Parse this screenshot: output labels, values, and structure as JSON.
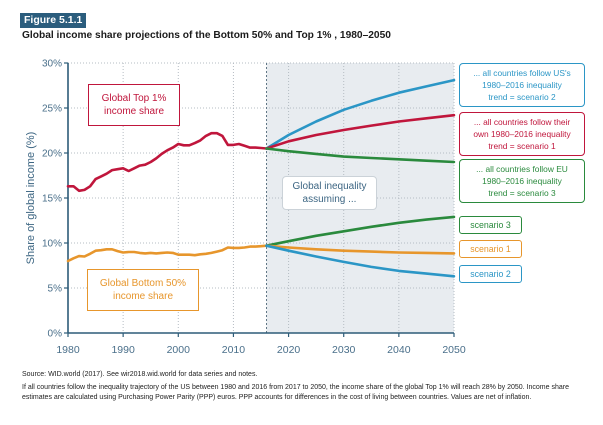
{
  "figure": {
    "label": "Figure 5.1.1",
    "title": "Global income share projections of the Bottom 50% and Top 1% , 1980–2050"
  },
  "chart_data": {
    "type": "line",
    "title": "Global income share projections of the Bottom 50% and Top 1% , 1980–2050",
    "xlabel": "",
    "ylabel": "Share of global income (%)",
    "xlim": [
      1980,
      2050
    ],
    "ylim": [
      0,
      30
    ],
    "x_ticks": [
      1980,
      1990,
      2000,
      2010,
      2020,
      2030,
      2040,
      2050
    ],
    "x_tick_labels": [
      "1980",
      "1990",
      "2000",
      "2010",
      "2020",
      "2030",
      "2040",
      "2050"
    ],
    "y_ticks": [
      0,
      5,
      10,
      15,
      20,
      25,
      30
    ],
    "y_tick_labels": [
      "0%",
      "5%",
      "10%",
      "15%",
      "20%",
      "25%",
      "30%"
    ],
    "grid": true,
    "projection_start_year": 2016,
    "legend": "inline labels (left boxes) and scenario boxes (right)",
    "series": [
      {
        "name": "Global Top 1% income share",
        "group": "top1",
        "kind": "historical",
        "color": "#c0163c",
        "x": [
          1980,
          1981,
          1982,
          1983,
          1984,
          1985,
          1986,
          1987,
          1988,
          1989,
          1990,
          1991,
          1992,
          1993,
          1994,
          1995,
          1996,
          1997,
          1998,
          1999,
          2000,
          2001,
          2002,
          2003,
          2004,
          2005,
          2006,
          2007,
          2008,
          2009,
          2010,
          2011,
          2012,
          2013,
          2014,
          2015,
          2016
        ],
        "values": [
          16.3,
          16.3,
          15.8,
          15.9,
          16.3,
          17.1,
          17.4,
          17.7,
          18.1,
          18.2,
          18.3,
          18.0,
          18.3,
          18.6,
          18.7,
          19.0,
          19.4,
          19.9,
          20.3,
          20.6,
          21.0,
          20.85,
          20.85,
          21.1,
          21.4,
          21.9,
          22.2,
          22.2,
          21.9,
          20.9,
          20.9,
          21.0,
          20.8,
          20.6,
          20.6,
          20.55,
          20.5
        ]
      },
      {
        "name": "Global Bottom 50% income share",
        "group": "bottom50",
        "kind": "historical",
        "color": "#e7962c",
        "x": [
          1980,
          1981,
          1982,
          1983,
          1984,
          1985,
          1986,
          1987,
          1988,
          1989,
          1990,
          1991,
          1992,
          1993,
          1994,
          1995,
          1996,
          1997,
          1998,
          1999,
          2000,
          2001,
          2002,
          2003,
          2004,
          2005,
          2006,
          2007,
          2008,
          2009,
          2010,
          2011,
          2012,
          2013,
          2014,
          2015,
          2016
        ],
        "values": [
          8.0,
          8.3,
          8.55,
          8.5,
          8.8,
          9.15,
          9.2,
          9.3,
          9.3,
          9.1,
          8.95,
          9.0,
          9.0,
          8.9,
          8.85,
          8.9,
          8.85,
          8.9,
          8.95,
          8.9,
          8.7,
          8.7,
          8.7,
          8.65,
          8.75,
          8.8,
          8.9,
          9.05,
          9.2,
          9.5,
          9.45,
          9.45,
          9.5,
          9.6,
          9.6,
          9.65,
          9.7
        ]
      },
      {
        "name": "Top 1% – scenario 2 (US 1980–2016 trend)",
        "group": "top1",
        "kind": "projection",
        "color": "#2b96c6",
        "x": [
          2016,
          2020,
          2025,
          2030,
          2035,
          2040,
          2045,
          2050
        ],
        "values": [
          20.5,
          22.0,
          23.5,
          24.8,
          25.8,
          26.7,
          27.4,
          28.1
        ]
      },
      {
        "name": "Top 1% – scenario 1 (own 1980–2016 trend)",
        "group": "top1",
        "kind": "projection",
        "color": "#c0163c",
        "x": [
          2016,
          2020,
          2025,
          2030,
          2035,
          2040,
          2045,
          2050
        ],
        "values": [
          20.5,
          21.3,
          22.0,
          22.55,
          23.05,
          23.5,
          23.85,
          24.2
        ]
      },
      {
        "name": "Top 1% – scenario 3 (EU 1980–2016 trend)",
        "group": "top1",
        "kind": "projection",
        "color": "#2a8a3d",
        "x": [
          2016,
          2020,
          2025,
          2030,
          2035,
          2040,
          2045,
          2050
        ],
        "values": [
          20.5,
          20.2,
          19.9,
          19.6,
          19.45,
          19.3,
          19.15,
          19.0
        ]
      },
      {
        "name": "Bottom 50% – scenario 3",
        "group": "bottom50",
        "kind": "projection",
        "color": "#2a8a3d",
        "x": [
          2016,
          2020,
          2025,
          2030,
          2035,
          2040,
          2045,
          2050
        ],
        "values": [
          9.7,
          10.2,
          10.8,
          11.3,
          11.8,
          12.25,
          12.6,
          12.9
        ]
      },
      {
        "name": "Bottom 50% – scenario 1",
        "group": "bottom50",
        "kind": "projection",
        "color": "#e7962c",
        "x": [
          2016,
          2020,
          2025,
          2030,
          2035,
          2040,
          2045,
          2050
        ],
        "values": [
          9.7,
          9.5,
          9.3,
          9.15,
          9.05,
          8.95,
          8.9,
          8.85
        ]
      },
      {
        "name": "Bottom 50% – scenario 2",
        "group": "bottom50",
        "kind": "projection",
        "color": "#2b96c6",
        "x": [
          2016,
          2020,
          2025,
          2030,
          2035,
          2040,
          2045,
          2050
        ],
        "values": [
          9.7,
          9.15,
          8.5,
          7.9,
          7.35,
          6.9,
          6.6,
          6.3
        ]
      }
    ],
    "annotations": {
      "top1_label": [
        "Global Top 1%",
        "income share"
      ],
      "bottom50_label": [
        "Global Bottom 50%",
        "income share"
      ],
      "assumption_label": [
        "Global inequality",
        "assuming ..."
      ],
      "scenario2_box": [
        "... all countries follow US's",
        "1980–2016 inequality",
        "trend = scenario 2"
      ],
      "scenario1_box": [
        "... all countries follow their",
        "own 1980–2016 inequality",
        "trend = scenario 1"
      ],
      "scenario3_box": [
        "... all countries follow EU",
        "1980–2016 inequality",
        "trend = scenario 3"
      ],
      "bottom_scenarios": [
        "scenario 3",
        "scenario 1",
        "scenario 2"
      ]
    }
  },
  "footer": {
    "source": "Source: WID.world (2017). See wir2018.wid.world for data series and notes.",
    "note": "If all countries follow the inequality trajectory of the US between 1980 and 2016 from 2017 to 2050, the  income share of the global Top 1% will reach 28% by 2050. Income share estimates are calculated using Purchasing Power Parity (PPP) euros. PPP accounts for differences in the cost of living between countries. Values are net of inflation."
  }
}
